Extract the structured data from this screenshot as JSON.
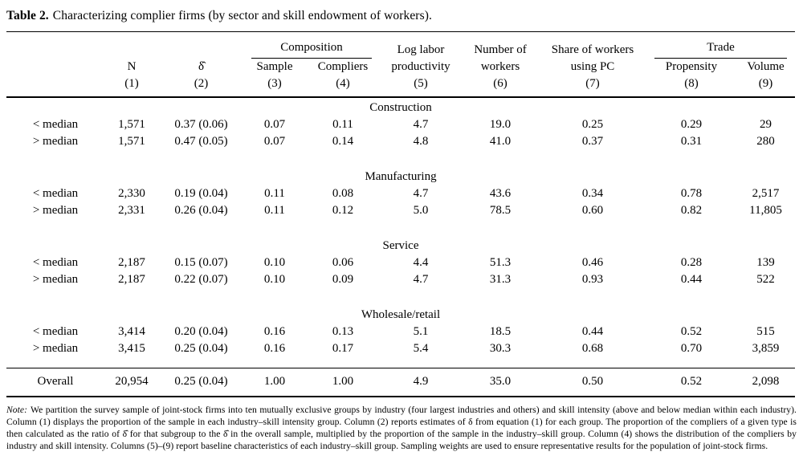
{
  "title": {
    "label": "Table 2.",
    "text": "Characterizing complier firms (by sector and skill endowment of workers)."
  },
  "table": {
    "header": {
      "groups": {
        "composition": "Composition",
        "trade": "Trade"
      },
      "columns": [
        {
          "line1": "",
          "line2": "N",
          "num": "(1)"
        },
        {
          "line1": "",
          "line2": "δ̂",
          "num": "(2)"
        },
        {
          "line1": "",
          "line2": "Sample",
          "num": "(3)"
        },
        {
          "line1": "",
          "line2": "Compliers",
          "num": "(4)"
        },
        {
          "line1": "Log labor",
          "line2": "productivity",
          "num": "(5)"
        },
        {
          "line1": "Number of",
          "line2": "workers",
          "num": "(6)"
        },
        {
          "line1": "Share of workers",
          "line2": "using PC",
          "num": "(7)"
        },
        {
          "line1": "",
          "line2": "Propensity",
          "num": "(8)"
        },
        {
          "line1": "",
          "line2": "Volume",
          "num": "(9)"
        }
      ]
    },
    "sections": [
      {
        "name": "Construction",
        "rows": [
          {
            "label": "< median",
            "values": [
              "1,571",
              "0.37 (0.06)",
              "0.07",
              "0.11",
              "4.7",
              "19.0",
              "0.25",
              "0.29",
              "29"
            ]
          },
          {
            "label": "> median",
            "values": [
              "1,571",
              "0.47 (0.05)",
              "0.07",
              "0.14",
              "4.8",
              "41.0",
              "0.37",
              "0.31",
              "280"
            ]
          }
        ]
      },
      {
        "name": "Manufacturing",
        "rows": [
          {
            "label": "< median",
            "values": [
              "2,330",
              "0.19 (0.04)",
              "0.11",
              "0.08",
              "4.7",
              "43.6",
              "0.34",
              "0.78",
              "2,517"
            ]
          },
          {
            "label": "> median",
            "values": [
              "2,331",
              "0.26 (0.04)",
              "0.11",
              "0.12",
              "5.0",
              "78.5",
              "0.60",
              "0.82",
              "11,805"
            ]
          }
        ]
      },
      {
        "name": "Service",
        "rows": [
          {
            "label": "< median",
            "values": [
              "2,187",
              "0.15 (0.07)",
              "0.10",
              "0.06",
              "4.4",
              "51.3",
              "0.46",
              "0.28",
              "139"
            ]
          },
          {
            "label": "> median",
            "values": [
              "2,187",
              "0.22 (0.07)",
              "0.10",
              "0.09",
              "4.7",
              "31.3",
              "0.93",
              "0.44",
              "522"
            ]
          }
        ]
      },
      {
        "name": "Wholesale/retail",
        "rows": [
          {
            "label": "< median",
            "values": [
              "3,414",
              "0.20 (0.04)",
              "0.16",
              "0.13",
              "5.1",
              "18.5",
              "0.44",
              "0.52",
              "515"
            ]
          },
          {
            "label": "> median",
            "values": [
              "3,415",
              "0.25 (0.04)",
              "0.16",
              "0.17",
              "5.4",
              "30.3",
              "0.68",
              "0.70",
              "3,859"
            ]
          }
        ]
      }
    ],
    "overall": {
      "label": "Overall",
      "values": [
        "20,954",
        "0.25 (0.04)",
        "1.00",
        "1.00",
        "4.9",
        "35.0",
        "0.50",
        "0.52",
        "2,098"
      ]
    }
  },
  "note": {
    "label": "Note:",
    "text": "We partition the survey sample of joint-stock firms into ten mutually exclusive groups by industry (four largest industries and others) and skill intensity (above and below median within each industry). Column (1) displays the proportion of the sample in each industry–skill intensity group. Column (2) reports estimates of δ from equation (1) for each group. The proportion of the compliers of a given type is then calculated as the ratio of δ̂ for that subgroup to the δ̂ in the overall sample, multiplied by the proportion of the sample in the industry–skill group. Column (4) shows the distribution of the compliers by industry and skill intensity. Columns (5)–(9) report baseline characteristics of each industry–skill group. Sampling weights are used to ensure representative results for the population of joint-stock firms."
  }
}
